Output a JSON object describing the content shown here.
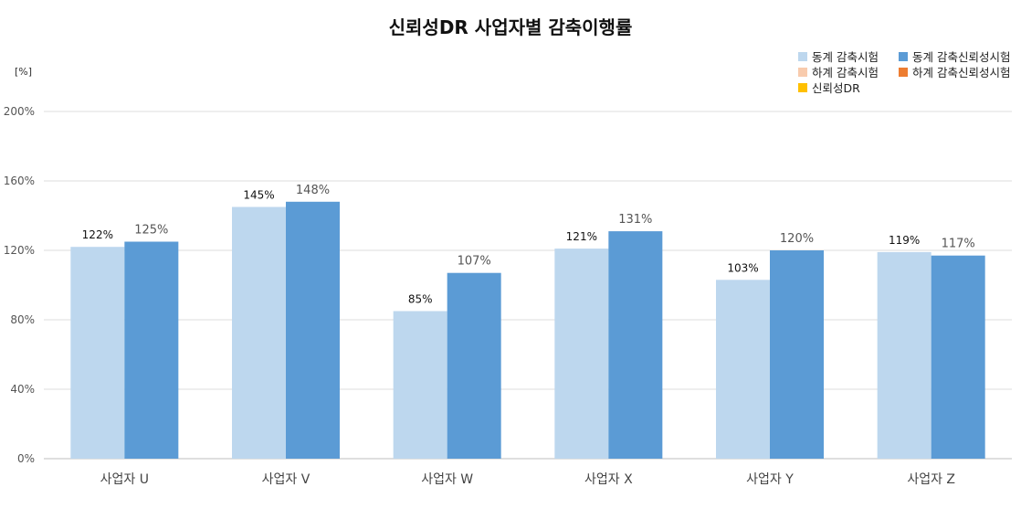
{
  "chart_data": {
    "type": "bar",
    "title": "신뢰성DR 사업자별 감축이행률",
    "unit_label": "[%]",
    "categories": [
      "사업자 U",
      "사업자 V",
      "사업자 W",
      "사업자 X",
      "사업자 Y",
      "사업자 Z"
    ],
    "ylim": [
      0,
      200
    ],
    "yticks": [
      0,
      40,
      80,
      120,
      160,
      200
    ],
    "ytick_labels": [
      "0%",
      "40%",
      "80%",
      "120%",
      "160%",
      "200%"
    ],
    "grid": true,
    "legend_position": "top-right",
    "legend": [
      {
        "name": "동계 감축시험",
        "color": "#bdd7ee"
      },
      {
        "name": "동계 감축신뢰성시험",
        "color": "#5b9bd5"
      },
      {
        "name": "하계 감축시험",
        "color": "#f8cbad"
      },
      {
        "name": "하계 감축신뢰성시험",
        "color": "#ed7d31"
      },
      {
        "name": "신뢰성DR",
        "color": "#ffc000"
      }
    ],
    "series": [
      {
        "name": "동계 감축시험",
        "color": "#bdd7ee",
        "values": [
          122,
          145,
          85,
          121,
          103,
          119
        ],
        "labels": [
          "122%",
          "145%",
          "85%",
          "121%",
          "103%",
          "119%"
        ]
      },
      {
        "name": "동계 감축신뢰성시험",
        "color": "#5b9bd5",
        "values": [
          125,
          148,
          107,
          131,
          120,
          117
        ],
        "labels": [
          "125%",
          "148%",
          "107%",
          "131%",
          "120%",
          "117%"
        ]
      }
    ]
  }
}
